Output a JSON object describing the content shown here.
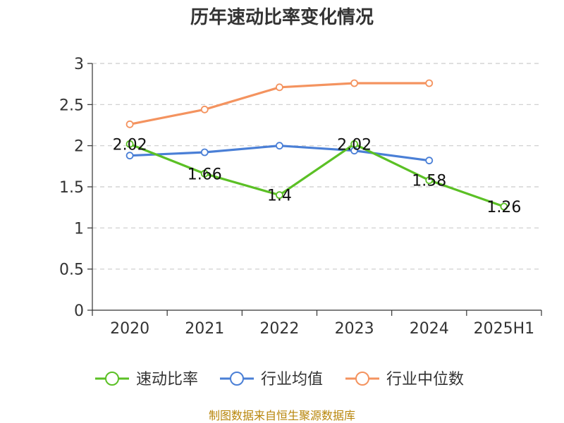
{
  "chart_data": {
    "type": "line",
    "title": "历年速动比率变化情况",
    "categories": [
      "2020",
      "2021",
      "2022",
      "2023",
      "2024",
      "2025H1"
    ],
    "ylim": [
      0,
      3
    ],
    "yticks": [
      "0",
      "0.5",
      "1",
      "1.5",
      "2",
      "2.5",
      "3"
    ],
    "grid": true,
    "legend_position": "bottom",
    "series": [
      {
        "name": "速动比率",
        "color": "#5bc025",
        "values": [
          2.02,
          1.66,
          1.4,
          2.02,
          1.58,
          1.26
        ],
        "labels": [
          "2.02",
          "1.66",
          "1.4",
          "2.02",
          "1.58",
          "1.26"
        ]
      },
      {
        "name": "行业均值",
        "color": "#4a7fd6",
        "values": [
          1.88,
          1.92,
          2.0,
          1.94,
          1.82,
          null
        ]
      },
      {
        "name": "行业中位数",
        "color": "#f4935f",
        "values": [
          2.26,
          2.44,
          2.71,
          2.76,
          2.76,
          null
        ]
      }
    ]
  },
  "source": "制图数据来自恒生聚源数据库"
}
